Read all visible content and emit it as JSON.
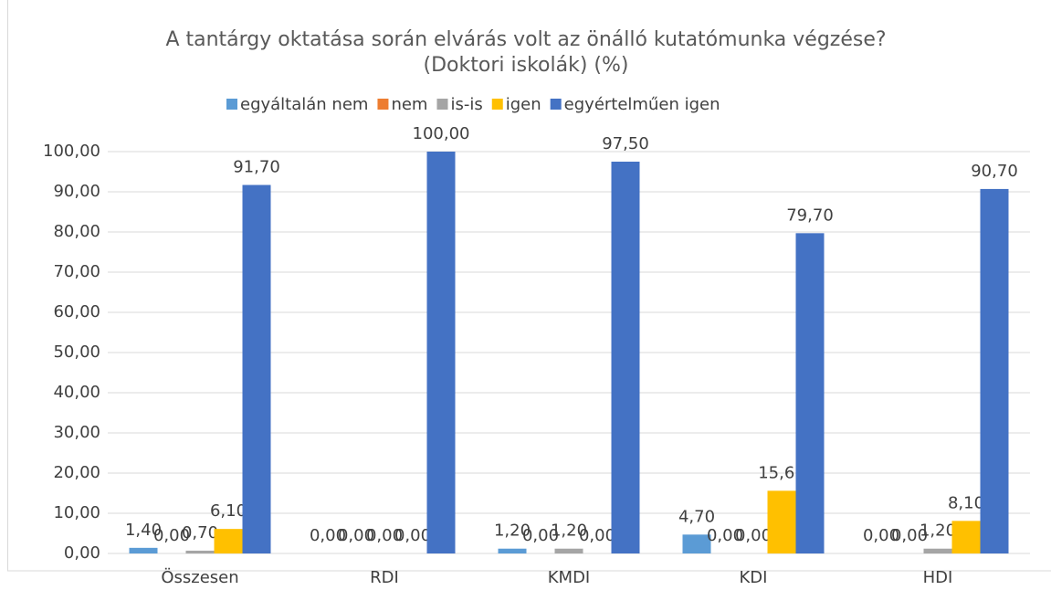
{
  "chart_data": {
    "type": "bar",
    "title": "A tantárgy oktatása során elvárás volt az önálló kutatómunka végzése? (Doktori iskolák) (%)",
    "categories": [
      "Összesen",
      "RDI",
      "KMDI",
      "KDI",
      "HDI"
    ],
    "series": [
      {
        "name": "egyáltalán nem",
        "color": "#5b9bd5",
        "values": [
          1.4,
          0,
          1.2,
          4.7,
          0
        ],
        "value_labels": [
          "1,40",
          "0,00",
          "1,20",
          "4,70",
          "0,00"
        ]
      },
      {
        "name": "nem",
        "color": "#ed7d31",
        "values": [
          0,
          0,
          0,
          0,
          0
        ],
        "value_labels": [
          "0,00",
          "0,00",
          "0,00",
          "0,00",
          "0,00"
        ]
      },
      {
        "name": "is-is",
        "color": "#a5a5a5",
        "values": [
          0.7,
          0,
          1.2,
          0,
          1.2
        ],
        "value_labels": [
          "0,70",
          "0,00",
          "1,20",
          "0,00",
          "1,20"
        ]
      },
      {
        "name": "igen",
        "color": "#ffc000",
        "values": [
          6.1,
          0,
          0,
          15.6,
          8.1
        ],
        "value_labels": [
          "6,10",
          "0,00",
          "0,00",
          "15,60",
          "8,10"
        ]
      },
      {
        "name": "egyértelműen igen",
        "color": "#4472c4",
        "values": [
          91.7,
          100,
          97.5,
          79.7,
          90.7
        ],
        "value_labels": [
          "91,70",
          "100,00",
          "97,50",
          "79,70",
          "90,70"
        ]
      }
    ],
    "ylim": [
      0,
      100
    ],
    "yticks": [
      {
        "value": 0,
        "label": "0,00"
      },
      {
        "value": 10,
        "label": "10,00"
      },
      {
        "value": 20,
        "label": "20,00"
      },
      {
        "value": 30,
        "label": "30,00"
      },
      {
        "value": 40,
        "label": "40,00"
      },
      {
        "value": 50,
        "label": "50,00"
      },
      {
        "value": 60,
        "label": "60,00"
      },
      {
        "value": 70,
        "label": "70,00"
      },
      {
        "value": 80,
        "label": "80,00"
      },
      {
        "value": 90,
        "label": "90,00"
      },
      {
        "value": 100,
        "label": "100,00"
      }
    ],
    "grid": true,
    "legend": "top"
  }
}
